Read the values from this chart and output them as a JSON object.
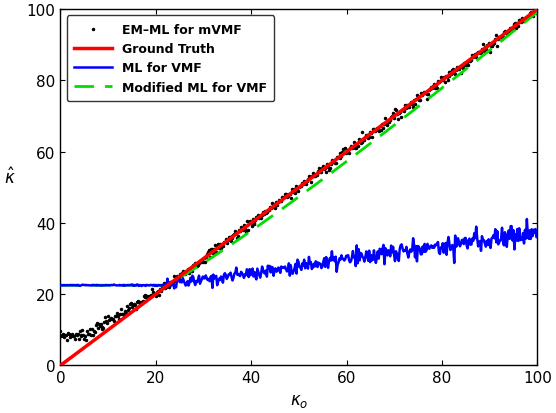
{
  "title": "",
  "xlabel": "$\\kappa_o$",
  "ylabel": "$\\hat{\\kappa}$",
  "xlim": [
    0,
    100
  ],
  "ylim": [
    0,
    100
  ],
  "xticks": [
    0,
    20,
    40,
    60,
    80,
    100
  ],
  "yticks": [
    0,
    20,
    40,
    60,
    80,
    100
  ],
  "background_color": "#ffffff",
  "legend_loc": "upper left",
  "ground_truth_color": "#ff0000",
  "ml_vmf_color": "#0000ff",
  "mod_ml_color": "#00dd00",
  "em_ml_color": "#000000",
  "num_points": 500
}
